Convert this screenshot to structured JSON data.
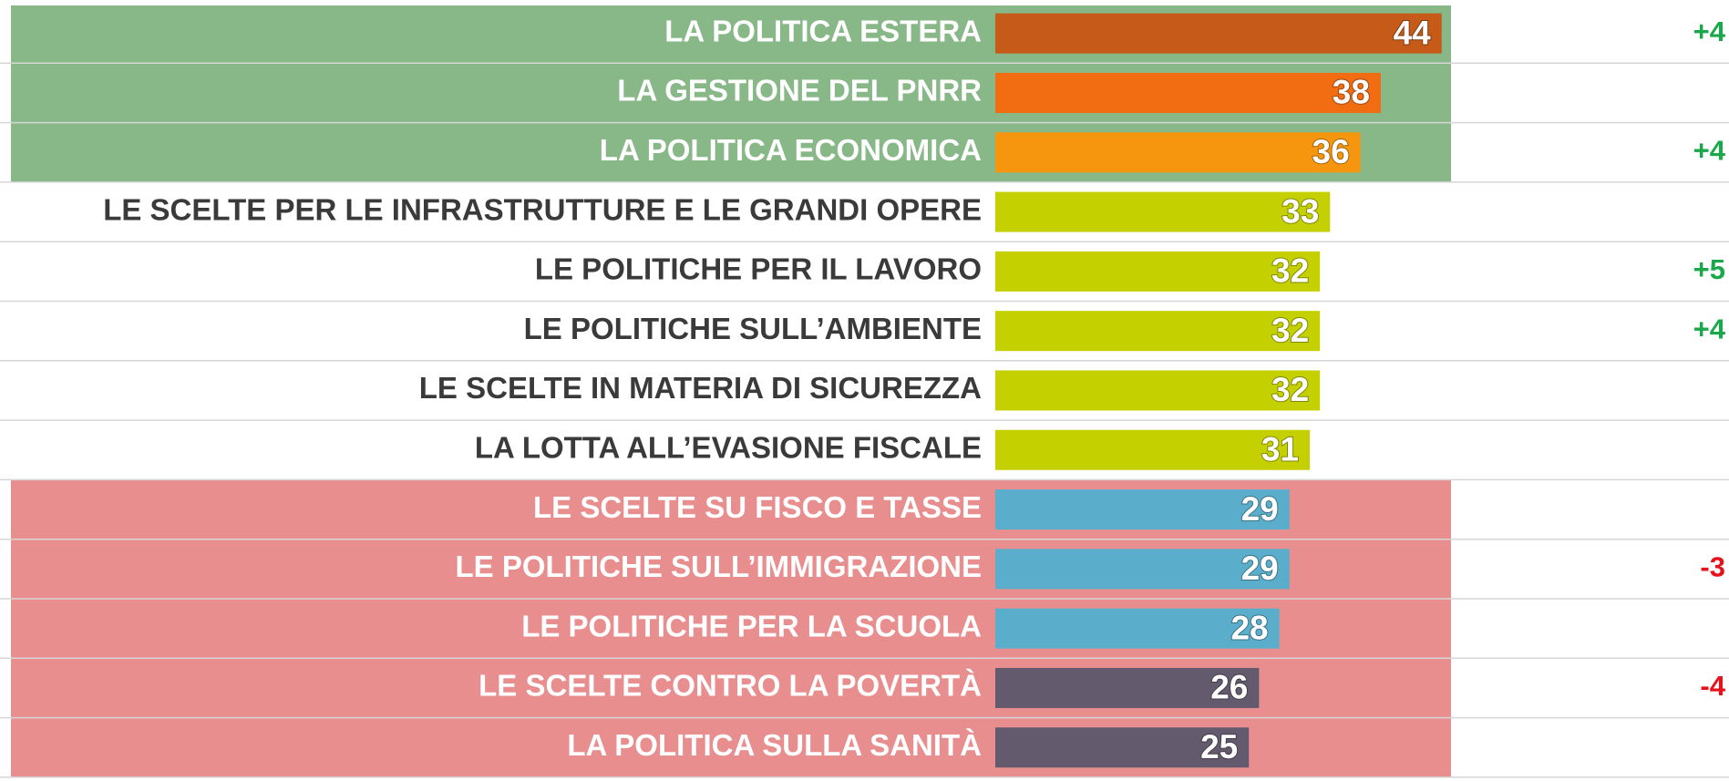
{
  "chart_data": {
    "type": "bar",
    "orientation": "horizontal",
    "categories": [
      "LA POLITICA ESTERA",
      "LA GESTIONE DEL PNRR",
      "LA POLITICA ECONOMICA",
      "LE SCELTE PER LE INFRASTRUTTURE E LE GRANDI OPERE",
      "LE POLITICHE PER IL LAVORO",
      "LE POLITICHE SULL’AMBIENTE",
      "LE SCELTE IN MATERIA DI SICUREZZA",
      "LA LOTTA ALL’EVASIONE FISCALE",
      "LE SCELTE SU FISCO E TASSE",
      "LE POLITICHE SULL’IMMIGRAZIONE",
      "LE POLITICHE PER LA SCUOLA",
      "LE SCELTE CONTRO LA POVERTÀ",
      "LA POLITICA SULLA SANITÀ"
    ],
    "values": [
      44,
      38,
      36,
      33,
      32,
      32,
      32,
      31,
      29,
      29,
      28,
      26,
      25
    ],
    "colors": [
      "#c55a19",
      "#f26c12",
      "#f6960f",
      "#c5d000",
      "#c5d000",
      "#c5d000",
      "#c5d000",
      "#c5d000",
      "#5aaecb",
      "#5aaecb",
      "#5aaecb",
      "#645a6e",
      "#645a6e"
    ],
    "changes": [
      "+4",
      null,
      "+4",
      null,
      "+5",
      "+4",
      null,
      null,
      null,
      "-3",
      null,
      "-4",
      null
    ]
  }
}
